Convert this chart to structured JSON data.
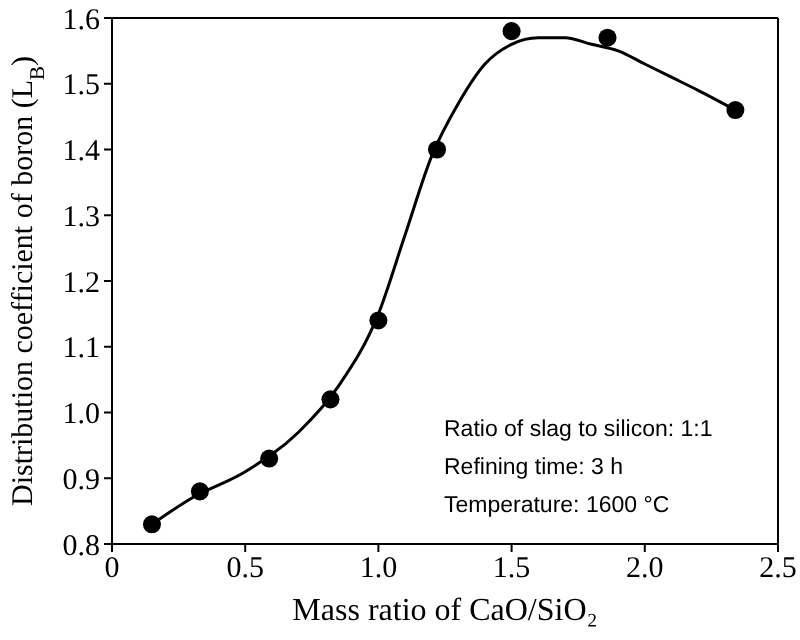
{
  "chart_data": {
    "type": "scatter",
    "xlabel": "Mass ratio of CaO/SiO₂",
    "ylabel": "Distribution coefficient of boron (L$_{B}$)",
    "xlim": [
      0,
      2.5
    ],
    "xticks": [
      0,
      0.5,
      {
        "value": 1,
        "label": "1.0"
      },
      1.5,
      {
        "value": 2,
        "label": "2.0"
      },
      2.5
    ],
    "ylim": [
      0.8,
      1.6
    ],
    "yticks": [
      0.8,
      0.9,
      {
        "value": 1,
        "label": "1.0"
      },
      1.1,
      1.2,
      1.3,
      1.4,
      1.5,
      1.6
    ],
    "grid": false,
    "series": [
      {
        "color": "#000000",
        "marker": "circle",
        "x": [
          0.15,
          0.33,
          0.59,
          0.82,
          1.0,
          1.22,
          1.5,
          1.86,
          2.34
        ],
        "values": [
          0.83,
          0.88,
          0.93,
          1.02,
          1.14,
          1.4,
          1.58,
          1.57,
          1.46
        ]
      },
      {
        "type": "line",
        "color": "#000000",
        "marker": "none",
        "line_style": "solid",
        "x": [
          0.15,
          0.3,
          0.5,
          0.7,
          0.85,
          1.0,
          1.1,
          1.2,
          1.3,
          1.4,
          1.5,
          1.6,
          1.7,
          1.8,
          1.9,
          2.0,
          2.1,
          2.2,
          2.34
        ],
        "values": [
          0.83,
          0.87,
          0.91,
          0.97,
          1.04,
          1.15,
          1.27,
          1.39,
          1.47,
          1.53,
          1.56,
          1.57,
          1.57,
          1.56,
          1.55,
          1.53,
          1.51,
          1.49,
          1.46
        ]
      }
    ],
    "annotations": [
      "Ratio of slag to silicon: 1:1",
      "Refining time: 3 h",
      "Temperature: 1600 °C"
    ]
  }
}
